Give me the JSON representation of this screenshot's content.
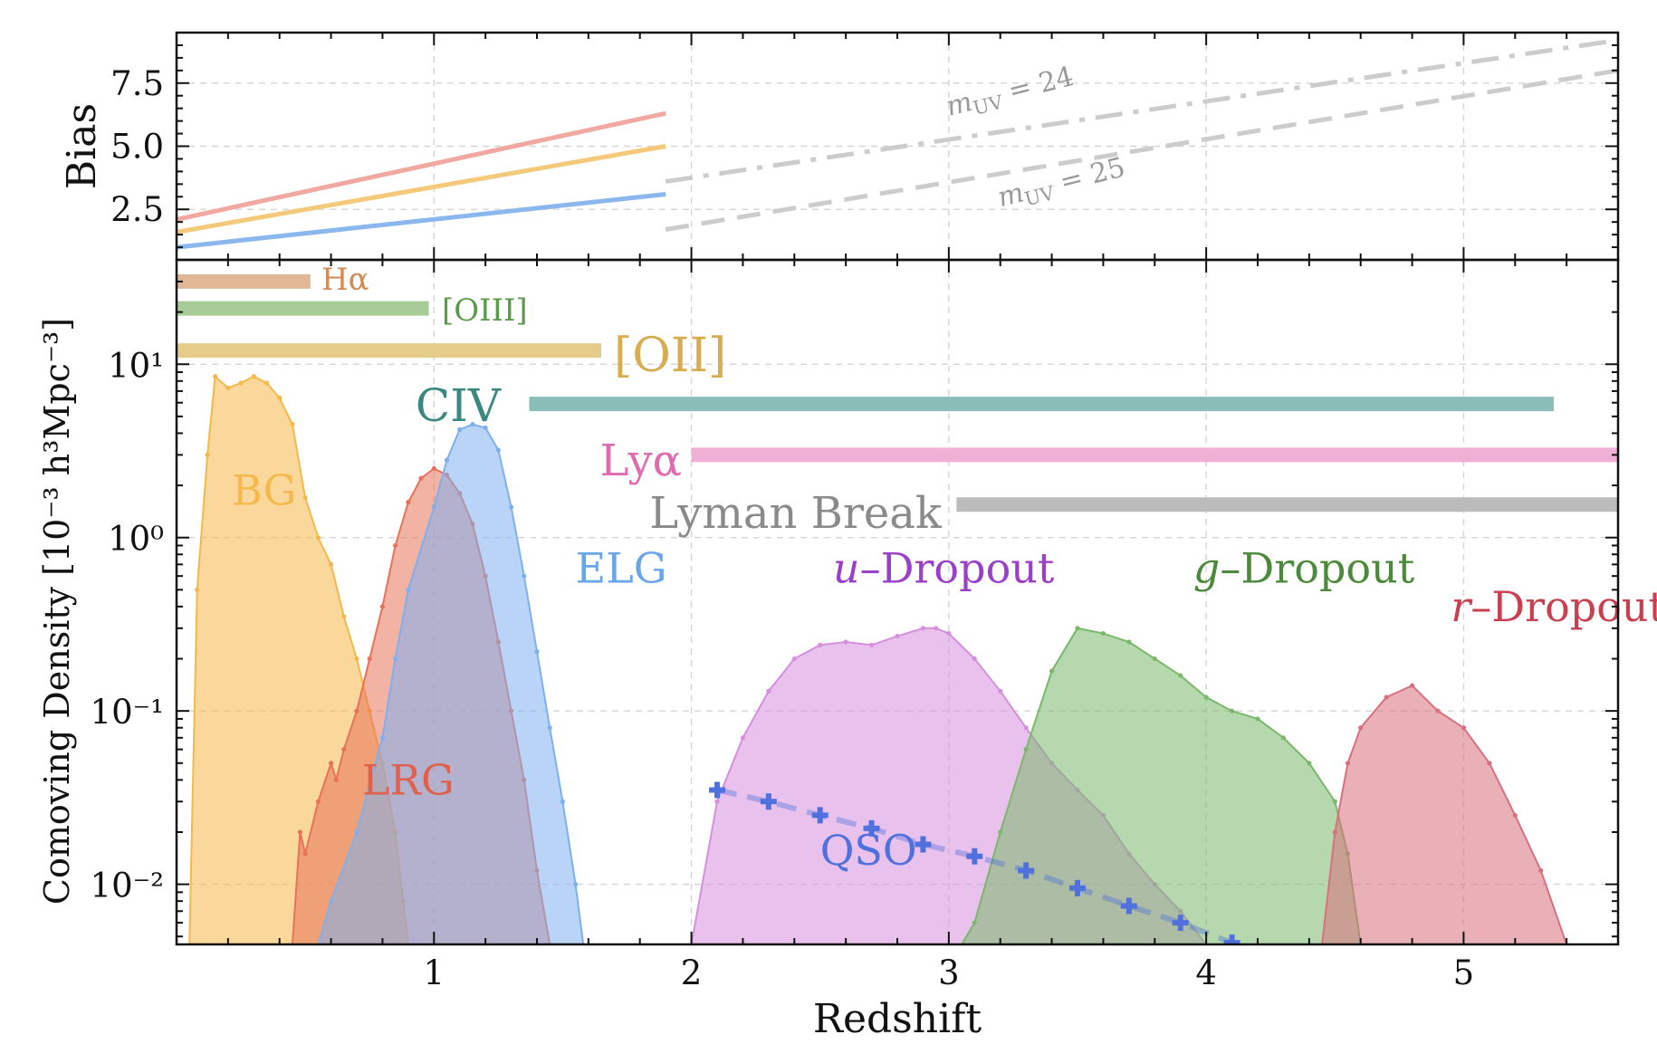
{
  "chart_data": [
    {
      "panel": "bias",
      "type": "line",
      "ylabel": "Bias",
      "xlim": [
        0,
        5.6
      ],
      "ylim": [
        0.5,
        9.5
      ],
      "yticks": [
        "2.5",
        "5.0",
        "7.5"
      ],
      "grid": true,
      "series": [
        {
          "color": "#f0a8a0",
          "style": "solid",
          "x": [
            0,
            1.9
          ],
          "y": [
            2.1,
            6.3
          ]
        },
        {
          "color": "#f5c97a",
          "style": "solid",
          "x": [
            0,
            1.9
          ],
          "y": [
            1.6,
            5.0
          ]
        },
        {
          "color": "#8ab8ee",
          "style": "solid",
          "x": [
            0,
            1.9
          ],
          "y": [
            1.0,
            3.1
          ]
        },
        {
          "name": "mUV = 24",
          "color": "#cccccc",
          "style": "dashdot",
          "x": [
            1.9,
            5.6
          ],
          "y": [
            3.6,
            9.2
          ]
        },
        {
          "name": "mUV = 25",
          "color": "#cccccc",
          "style": "dashed",
          "x": [
            1.9,
            5.6
          ],
          "y": [
            1.7,
            8.0
          ]
        }
      ],
      "annotations": [
        {
          "text": "m_UV = 24",
          "x": 3.0,
          "y": 6.2
        },
        {
          "text": "m_UV = 25",
          "x": 3.2,
          "y": 2.6
        }
      ]
    },
    {
      "panel": "density",
      "type": "area",
      "xlabel": "Redshift",
      "ylabel": "Comoving Density [10⁻³ h³Mpc⁻³]",
      "xlim": [
        0,
        5.6
      ],
      "ylim": [
        0.0045,
        40
      ],
      "log_y": true,
      "xticks": [
        "1",
        "2",
        "3",
        "4",
        "5"
      ],
      "yticks": [
        "10¹",
        "10⁰",
        "10⁻¹",
        "10⁻²"
      ],
      "grid": true,
      "series": [
        {
          "name": "BG",
          "color": "#f5b84a",
          "x": [
            0.05,
            0.08,
            0.12,
            0.15,
            0.2,
            0.25,
            0.3,
            0.35,
            0.4,
            0.45,
            0.5,
            0.55,
            0.6,
            0.65,
            0.7,
            0.75,
            0.8,
            0.85,
            0.88,
            0.9
          ],
          "y": [
            0.0045,
            0.5,
            3.0,
            8.5,
            7.3,
            7.8,
            8.5,
            7.8,
            6.4,
            4.5,
            1.7,
            1.0,
            0.7,
            0.35,
            0.2,
            0.1,
            0.05,
            0.02,
            0.008,
            0.0045
          ]
        },
        {
          "name": "LRG",
          "color": "#e8725a",
          "x": [
            0.45,
            0.48,
            0.5,
            0.55,
            0.6,
            0.62,
            0.65,
            0.7,
            0.75,
            0.8,
            0.85,
            0.9,
            0.95,
            1.0,
            1.05,
            1.1,
            1.15,
            1.2,
            1.25,
            1.3,
            1.35,
            1.4,
            1.45
          ],
          "y": [
            0.0045,
            0.02,
            0.015,
            0.03,
            0.05,
            0.04,
            0.06,
            0.1,
            0.2,
            0.4,
            0.9,
            1.6,
            2.2,
            2.5,
            2.3,
            1.8,
            1.2,
            0.6,
            0.25,
            0.1,
            0.04,
            0.012,
            0.0045
          ]
        },
        {
          "name": "ELG",
          "color": "#7fb0ee",
          "x": [
            0.55,
            0.6,
            0.7,
            0.8,
            0.85,
            0.9,
            1.0,
            1.05,
            1.1,
            1.15,
            1.2,
            1.25,
            1.3,
            1.35,
            1.4,
            1.45,
            1.5,
            1.55,
            1.58
          ],
          "y": [
            0.0045,
            0.008,
            0.02,
            0.07,
            0.2,
            0.5,
            1.5,
            2.8,
            4.2,
            4.5,
            4.3,
            3.2,
            1.5,
            0.6,
            0.22,
            0.08,
            0.03,
            0.01,
            0.0045
          ]
        },
        {
          "name": "u–Dropout",
          "color": "#d58fdc",
          "x": [
            2.0,
            2.1,
            2.2,
            2.3,
            2.4,
            2.5,
            2.6,
            2.7,
            2.8,
            2.9,
            2.95,
            3.0,
            3.1,
            3.2,
            3.3,
            3.4,
            3.5,
            3.6,
            3.7,
            3.8,
            3.9,
            4.0
          ],
          "y": [
            0.0045,
            0.03,
            0.07,
            0.13,
            0.2,
            0.24,
            0.25,
            0.24,
            0.27,
            0.3,
            0.3,
            0.28,
            0.2,
            0.13,
            0.08,
            0.05,
            0.035,
            0.025,
            0.015,
            0.01,
            0.007,
            0.0045
          ]
        },
        {
          "name": "g–Dropout",
          "color": "#7ab86c",
          "x": [
            3.05,
            3.1,
            3.2,
            3.3,
            3.4,
            3.5,
            3.6,
            3.7,
            3.8,
            3.9,
            4.0,
            4.1,
            4.2,
            4.3,
            4.4,
            4.5,
            4.55,
            4.6
          ],
          "y": [
            0.0045,
            0.006,
            0.02,
            0.06,
            0.17,
            0.3,
            0.28,
            0.25,
            0.2,
            0.16,
            0.12,
            0.1,
            0.09,
            0.07,
            0.05,
            0.03,
            0.015,
            0.0045
          ]
        },
        {
          "name": "r–Dropout",
          "color": "#d8707e",
          "x": [
            4.45,
            4.5,
            4.55,
            4.6,
            4.7,
            4.8,
            4.9,
            5.0,
            5.1,
            5.2,
            5.3,
            5.4
          ],
          "y": [
            0.0045,
            0.02,
            0.05,
            0.08,
            0.12,
            0.14,
            0.1,
            0.08,
            0.05,
            0.025,
            0.012,
            0.0045
          ]
        }
      ],
      "qso": {
        "name": "QSO",
        "color": "#5070dd",
        "x": [
          2.1,
          2.3,
          2.5,
          2.7,
          2.9,
          3.1,
          3.3,
          3.5,
          3.7,
          3.9,
          4.1
        ],
        "y": [
          0.035,
          0.03,
          0.025,
          0.021,
          0.017,
          0.0145,
          0.012,
          0.0095,
          0.0075,
          0.006,
          0.0046
        ]
      },
      "tracer_ranges": [
        {
          "name": "Hα",
          "text": "Hα",
          "color": "#e0b898",
          "x": [
            0,
            0.52
          ],
          "y": 30
        },
        {
          "name": "[OIII]",
          "text": "[OIII]",
          "color": "#a8cc98",
          "x": [
            0,
            0.98
          ],
          "y": 21
        },
        {
          "name": "[OII]",
          "text": "[OII]",
          "color": "#e6cc8a",
          "x": [
            0,
            1.65
          ],
          "y": 12
        },
        {
          "name": "CIV",
          "text": "CIV",
          "color": "#8abcb8",
          "x": [
            1.37,
            5.35
          ],
          "y": 5.9
        },
        {
          "name": "Lyα",
          "text": "Lyα",
          "color": "#f0b0d6",
          "x": [
            2.0,
            5.6
          ],
          "y": 3.0
        },
        {
          "name": "Lyman Break",
          "text": "Lyman Break",
          "color": "#bbbbbb",
          "x": [
            3.03,
            5.6
          ],
          "y": 1.55
        }
      ],
      "labels": [
        {
          "text": "BG",
          "color": "#f5b84a",
          "x": 0.34,
          "y": 1.55
        },
        {
          "text": "LRG",
          "color": "#e0604a",
          "x": 0.9,
          "y": 0.033
        },
        {
          "text": "ELG",
          "color": "#6aa5ea",
          "x": 1.55,
          "y": 0.55
        },
        {
          "text": "u–Dropout",
          "color": "#9a40c8",
          "x": 2.55,
          "y": 0.55
        },
        {
          "text": "g–Dropout",
          "color": "#4a8a3a",
          "x": 3.95,
          "y": 0.55
        },
        {
          "text": "r–Dropout",
          "color": "#c84050",
          "x": 4.95,
          "y": 0.33
        },
        {
          "text": "QSO",
          "color": "#5070dd",
          "x": 2.5,
          "y": 0.013
        }
      ]
    }
  ]
}
